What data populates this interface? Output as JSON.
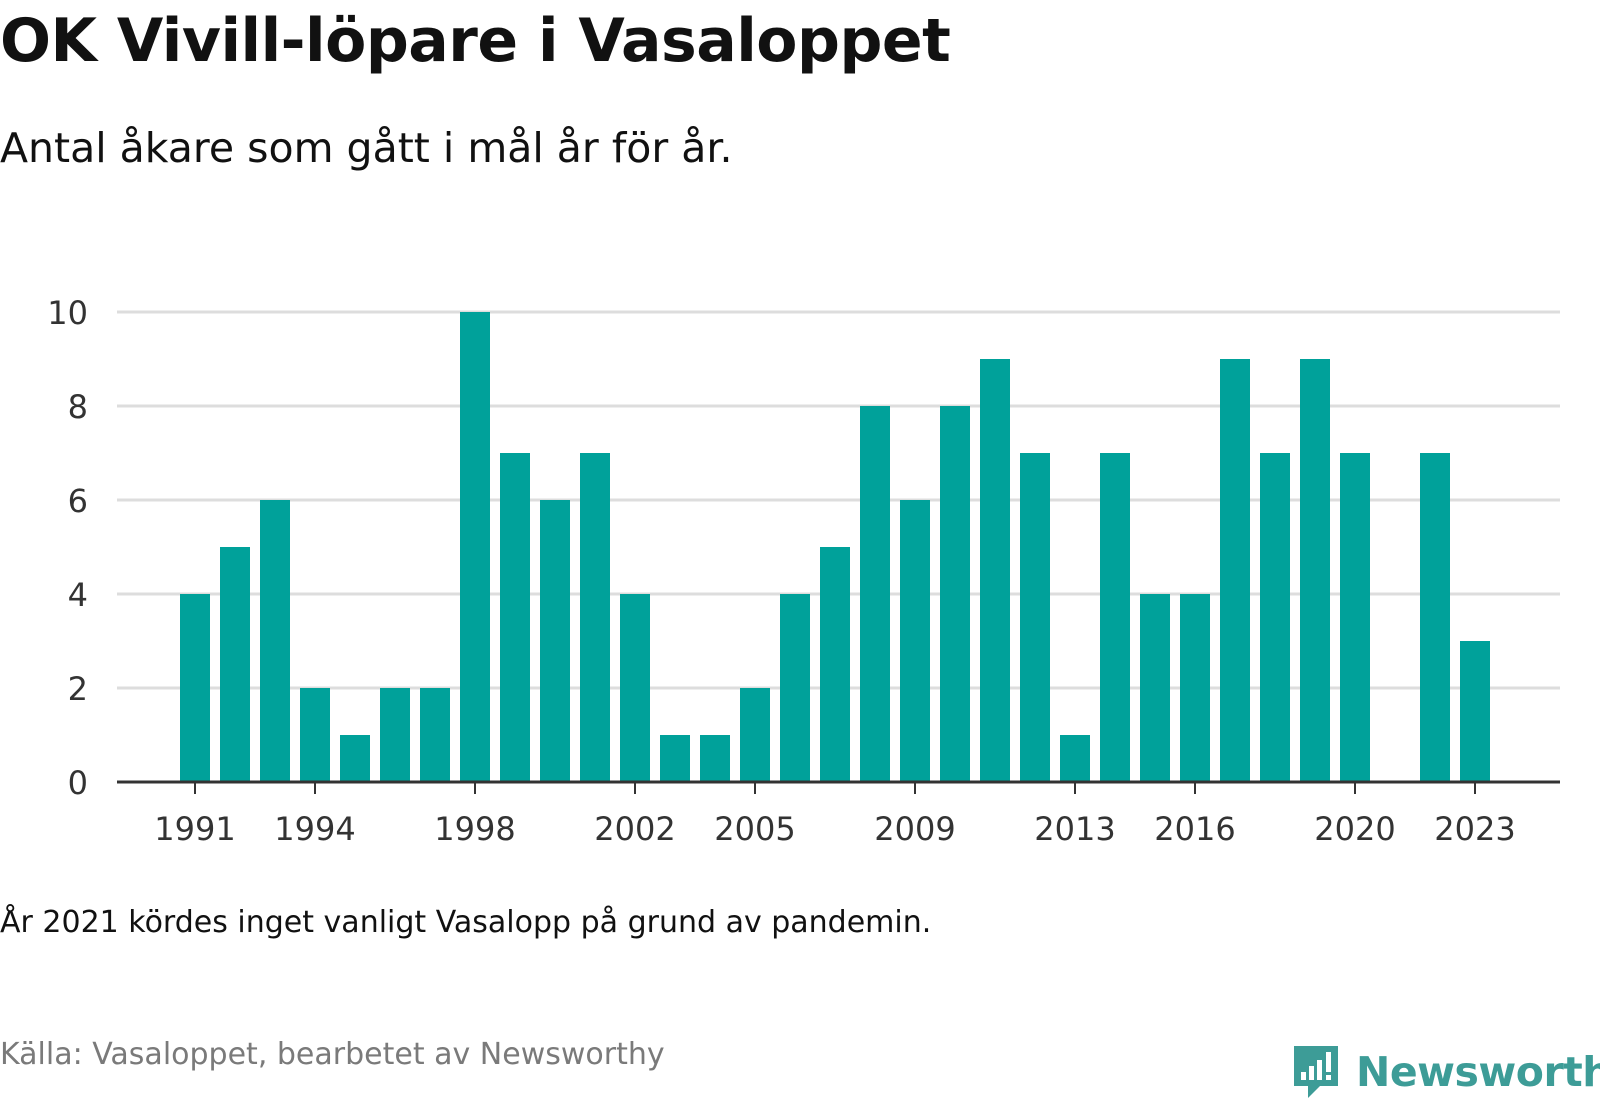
{
  "title": "OK Vivill-löpare i Vasaloppet",
  "subtitle": "Antal åkare som gått i mål år för år.",
  "note": "År 2021 kördes inget vanligt Vasalopp på grund av pandemin.",
  "source": "Källa: Vasaloppet, bearbetet av Newsworthy",
  "logo": {
    "text": "Newsworthy",
    "icon": "newsworthy-chart-bubble-icon",
    "color": "#3d9c97"
  },
  "colors": {
    "bar": "#00a19a",
    "grid": "#dddddd",
    "axis": "#333333"
  },
  "chart_data": {
    "type": "bar",
    "title": "OK Vivill-löpare i Vasaloppet",
    "subtitle": "Antal åkare som gått i mål år för år.",
    "xlabel": "",
    "ylabel": "",
    "categories": [
      1991,
      1992,
      1993,
      1994,
      1995,
      1996,
      1997,
      1998,
      1999,
      2000,
      2001,
      2002,
      2003,
      2004,
      2005,
      2006,
      2007,
      2008,
      2009,
      2010,
      2011,
      2012,
      2013,
      2014,
      2015,
      2016,
      2017,
      2018,
      2019,
      2020,
      2021,
      2022,
      2023
    ],
    "values": [
      4,
      5,
      6,
      2,
      1,
      2,
      2,
      10,
      7,
      6,
      7,
      4,
      1,
      1,
      2,
      4,
      5,
      8,
      6,
      8,
      9,
      7,
      1,
      7,
      4,
      4,
      9,
      7,
      9,
      7,
      null,
      7,
      3
    ],
    "x_tick_labels": [
      "1991",
      "1994",
      "1998",
      "2002",
      "2005",
      "2009",
      "2013",
      "2016",
      "2020",
      "2023"
    ],
    "y_ticks": [
      0,
      2,
      4,
      6,
      8,
      10
    ],
    "ylim": [
      0,
      10
    ],
    "grid": true,
    "legend": "none"
  }
}
